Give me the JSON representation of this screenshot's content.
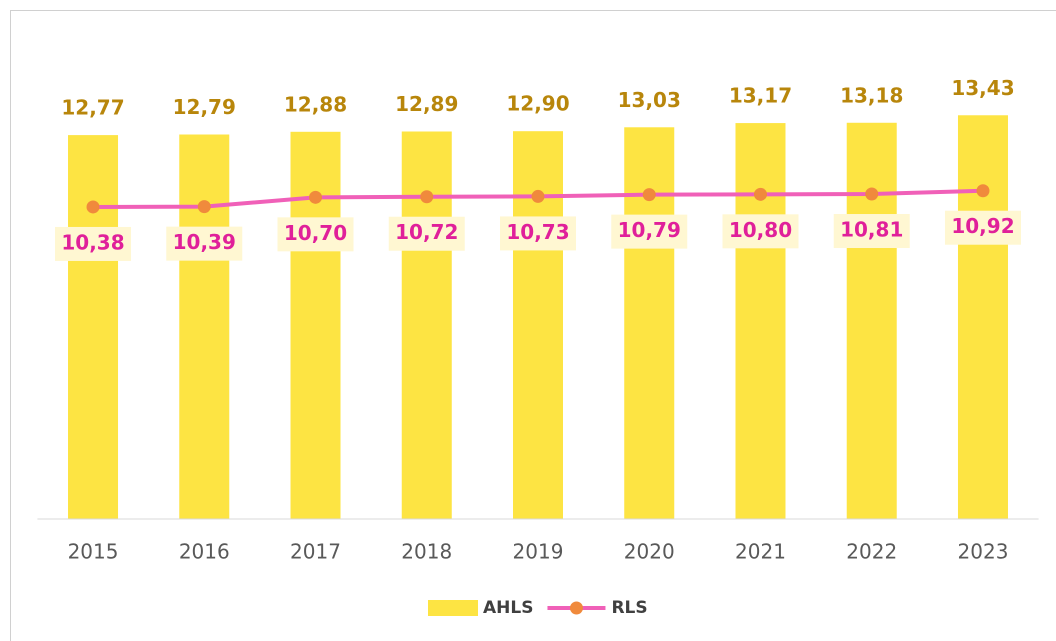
{
  "chart_data": {
    "type": "combo",
    "categories": [
      "2015",
      "2016",
      "2017",
      "2018",
      "2019",
      "2020",
      "2021",
      "2022",
      "2023"
    ],
    "ylim": [
      0,
      16
    ],
    "legend": "bottom",
    "series": [
      {
        "name": "AHLS",
        "type": "bar",
        "color": "#fde443",
        "label_color": "#b8860b",
        "values": [
          12.77,
          12.79,
          12.88,
          12.89,
          12.9,
          13.03,
          13.17,
          13.18,
          13.43
        ],
        "value_labels": [
          "12,77",
          "12,79",
          "12,88",
          "12,89",
          "12,90",
          "13,03",
          "13,17",
          "13,18",
          "13,43"
        ]
      },
      {
        "name": "RLS",
        "type": "line",
        "color": "#f060b8",
        "marker_color": "#f08a3c",
        "label_color": "#e0209a",
        "values": [
          10.38,
          10.39,
          10.7,
          10.72,
          10.73,
          10.79,
          10.8,
          10.81,
          10.92
        ],
        "value_labels": [
          "10,38",
          "10,39",
          "10,70",
          "10,72",
          "10,73",
          "10,79",
          "10,80",
          "10,81",
          "10,92"
        ]
      }
    ]
  }
}
